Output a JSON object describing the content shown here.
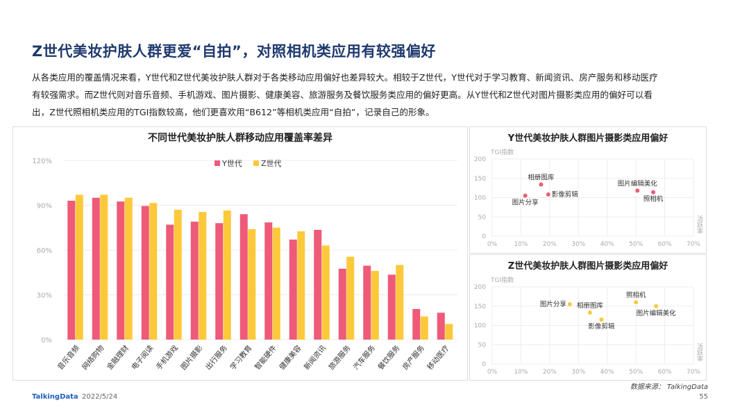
{
  "page": {
    "title": "Z世代美妆护肤人群更爱“自拍”，对照相机类应用有较强偏好",
    "intro_lines": [
      "从各类应用的覆盖情况来看，Y世代和Z世代美妆护肤人群对于各类移动应用偏好也差异较大。相较于Z世代，Y世代对于学习教育、新闻资讯、房产服务和移动医疗",
      "有较强需求。而Z世代则对音乐音频、手机游戏、图片摄影、健康美容、旅游服务及餐饮服务类应用的偏好更高。从Y世代和Z世代对图片摄影类应用的偏好可以看",
      "出，Z世代照相机类应用的TGI指数较高，他们更喜欢用“B612”等相机类应用“自拍”，记录自己的形象。"
    ],
    "source": "数据来源： TalkingData",
    "logo": "TalkingData",
    "date": "2022/5/24",
    "page_number": "55"
  },
  "chart_data": [
    {
      "type": "bar",
      "title": "不同世代美妆护肤人群移动应用覆盖率差异",
      "categories": [
        "音乐音频",
        "网络购物",
        "金融理财",
        "电子阅读",
        "手机游戏",
        "图片摄影",
        "出行服务",
        "学习教育",
        "智能硬件",
        "健康美容",
        "新闻资讯",
        "旅游服务",
        "汽车服务",
        "餐饮服务",
        "房产服务",
        "移动医疗"
      ],
      "series": [
        {
          "name": "Y世代",
          "color": "#ee5a78",
          "values": [
            93,
            95,
            92.5,
            89.5,
            77,
            79,
            78,
            84,
            78.5,
            67,
            73.5,
            47.5,
            49.5,
            43.5,
            20.5,
            18
          ]
        },
        {
          "name": "Z世代",
          "color": "#fdc93a",
          "values": [
            97,
            97,
            95,
            91.5,
            87,
            85.5,
            86.5,
            74,
            75,
            72.5,
            63,
            55.5,
            46,
            50,
            15.5,
            10.5
          ]
        }
      ],
      "ylim": [
        0,
        120
      ],
      "yticks": [
        "0%",
        "30%",
        "60%",
        "90%",
        "120%"
      ],
      "ytick_values": [
        0,
        30,
        60,
        90,
        120
      ],
      "legend": "top-center"
    },
    {
      "type": "scatter",
      "title": "Y世代美妆护肤人群图片摄影类应用偏好",
      "ylabel": "TGI指数",
      "xlabel": "活跃率",
      "xlim": [
        0,
        70
      ],
      "ylim": [
        0,
        200
      ],
      "xticks": [
        "0%",
        "10%",
        "20%",
        "30%",
        "40%",
        "50%",
        "60%",
        "70%"
      ],
      "xtick_values": [
        0,
        10,
        20,
        30,
        40,
        50,
        60,
        70
      ],
      "yticks": [
        "0",
        "50",
        "100",
        "150",
        "200"
      ],
      "ytick_values": [
        0,
        50,
        100,
        150,
        200
      ],
      "color": "#ee5a78",
      "points": [
        {
          "label": "相册图库",
          "x": 17,
          "y": 134,
          "pos": "above"
        },
        {
          "label": "影像剪辑",
          "x": 19.5,
          "y": 108,
          "pos": "right"
        },
        {
          "label": "图片分享",
          "x": 11.5,
          "y": 105,
          "pos": "below"
        },
        {
          "label": "图片编辑美化",
          "x": 50.5,
          "y": 118,
          "pos": "above"
        },
        {
          "label": "照相机",
          "x": 56,
          "y": 114,
          "pos": "below"
        }
      ]
    },
    {
      "type": "scatter",
      "title": "Z世代美妆护肤人群图片摄影类应用偏好",
      "ylabel": "TGI指数",
      "xlabel": "活跃率",
      "xlim": [
        0,
        70
      ],
      "ylim": [
        0,
        200
      ],
      "xticks": [
        "0%",
        "10%",
        "20%",
        "30%",
        "40%",
        "50%",
        "60%",
        "70%"
      ],
      "xtick_values": [
        0,
        10,
        20,
        30,
        40,
        50,
        60,
        70
      ],
      "yticks": [
        "0",
        "50",
        "100",
        "150",
        "200"
      ],
      "ytick_values": [
        0,
        50,
        100,
        150,
        200
      ],
      "color": "#fdc93a",
      "points": [
        {
          "label": "照相机",
          "x": 50,
          "y": 160,
          "pos": "above"
        },
        {
          "label": "图片分享",
          "x": 27,
          "y": 155,
          "pos": "left"
        },
        {
          "label": "相册图库",
          "x": 34,
          "y": 133,
          "pos": "above"
        },
        {
          "label": "影像剪辑",
          "x": 38,
          "y": 115,
          "pos": "below"
        },
        {
          "label": "图片编辑美化",
          "x": 57,
          "y": 150,
          "pos": "below"
        }
      ]
    }
  ]
}
